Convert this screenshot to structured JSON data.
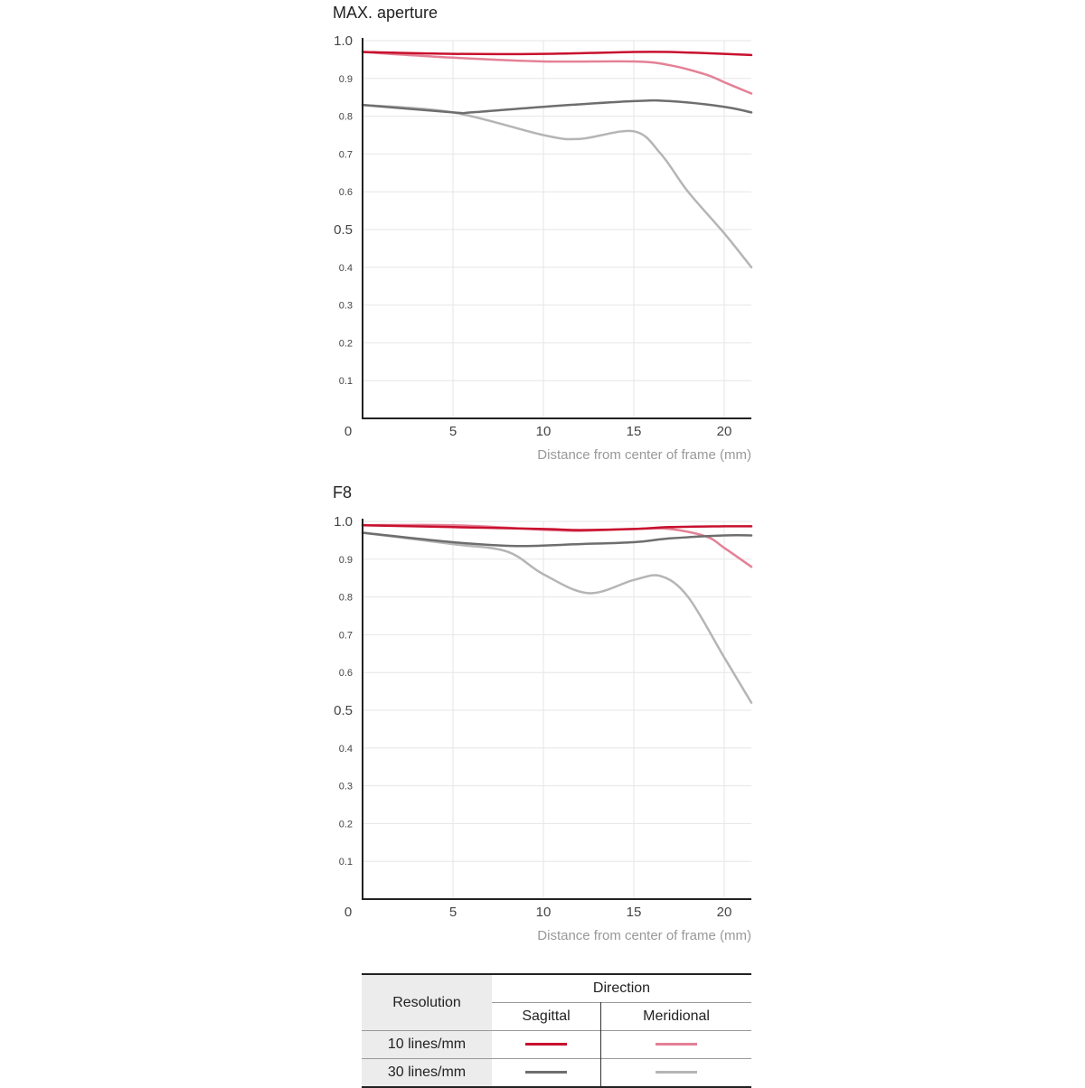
{
  "chart_data": [
    {
      "type": "line",
      "title": "MAX. aperture",
      "xlabel": "Distance from center of frame (mm)",
      "ylabel": "",
      "xlim": [
        0,
        21.5
      ],
      "ylim": [
        0,
        1.0
      ],
      "xticks": [
        "0",
        "5",
        "10",
        "15",
        "20"
      ],
      "yticks": [
        "0.1",
        "0.2",
        "0.3",
        "0.4",
        "0.5",
        "0.6",
        "0.7",
        "0.8",
        "0.9",
        "1.0"
      ],
      "grid": true,
      "series": [
        {
          "resolution": "10 lines/mm",
          "direction": "Sagittal",
          "color": "#c8102e",
          "x": [
            0,
            5,
            10,
            15,
            17,
            20,
            21.5
          ],
          "y": [
            0.97,
            0.965,
            0.965,
            0.97,
            0.97,
            0.965,
            0.962
          ]
        },
        {
          "resolution": "10 lines/mm",
          "direction": "Meridional",
          "color": "#e48196",
          "x": [
            0,
            5,
            10,
            15,
            17,
            19,
            20,
            21.5
          ],
          "y": [
            0.97,
            0.955,
            0.945,
            0.945,
            0.935,
            0.91,
            0.89,
            0.86
          ]
        },
        {
          "resolution": "30 lines/mm",
          "direction": "Sagittal",
          "color": "#6e6e6e",
          "x": [
            0,
            5,
            6,
            10,
            15,
            17,
            20,
            21.5
          ],
          "y": [
            0.83,
            0.81,
            0.81,
            0.825,
            0.84,
            0.84,
            0.825,
            0.81
          ]
        },
        {
          "resolution": "30 lines/mm",
          "direction": "Meridional",
          "color": "#b5b5b5",
          "x": [
            0,
            5,
            10,
            12,
            15,
            16.5,
            18,
            20,
            21.5
          ],
          "y": [
            0.83,
            0.81,
            0.75,
            0.74,
            0.76,
            0.7,
            0.6,
            0.49,
            0.4
          ]
        }
      ]
    },
    {
      "type": "line",
      "title": "F8",
      "xlabel": "Distance from center of frame (mm)",
      "ylabel": "",
      "xlim": [
        0,
        21.5
      ],
      "ylim": [
        0,
        1.0
      ],
      "xticks": [
        "0",
        "5",
        "10",
        "15",
        "20"
      ],
      "yticks": [
        "0.1",
        "0.2",
        "0.3",
        "0.4",
        "0.5",
        "0.6",
        "0.7",
        "0.8",
        "0.9",
        "1.0"
      ],
      "grid": true,
      "series": [
        {
          "resolution": "10 lines/mm",
          "direction": "Sagittal",
          "color": "#c8102e",
          "x": [
            0,
            5,
            10,
            12,
            15,
            17,
            20,
            21.5
          ],
          "y": [
            0.99,
            0.985,
            0.98,
            0.977,
            0.98,
            0.985,
            0.987,
            0.987
          ]
        },
        {
          "resolution": "10 lines/mm",
          "direction": "Meridional",
          "color": "#e48196",
          "x": [
            0,
            5,
            10,
            12,
            15,
            17,
            19,
            20,
            21.5
          ],
          "y": [
            0.99,
            0.99,
            0.978,
            0.975,
            0.98,
            0.98,
            0.96,
            0.93,
            0.88
          ]
        },
        {
          "resolution": "30 lines/mm",
          "direction": "Sagittal",
          "color": "#6e6e6e",
          "x": [
            0,
            5,
            8.5,
            12,
            15,
            17,
            20,
            21.5
          ],
          "y": [
            0.97,
            0.945,
            0.935,
            0.94,
            0.945,
            0.955,
            0.963,
            0.963
          ]
        },
        {
          "resolution": "30 lines/mm",
          "direction": "Meridional",
          "color": "#b5b5b5",
          "x": [
            0,
            5,
            8,
            10,
            12.5,
            15,
            16.5,
            18,
            20,
            21.5
          ],
          "y": [
            0.97,
            0.94,
            0.92,
            0.86,
            0.81,
            0.845,
            0.855,
            0.8,
            0.64,
            0.52
          ]
        }
      ]
    }
  ],
  "legend": {
    "resolution_header": "Resolution",
    "direction_header": "Direction",
    "sagittal": "Sagittal",
    "meridional": "Meridional",
    "rows": [
      {
        "label": "10 lines/mm",
        "sagittal_color": "#c8102e",
        "meridional_color": "#e48196"
      },
      {
        "label": "30 lines/mm",
        "sagittal_color": "#6e6e6e",
        "meridional_color": "#b5b5b5"
      }
    ]
  }
}
